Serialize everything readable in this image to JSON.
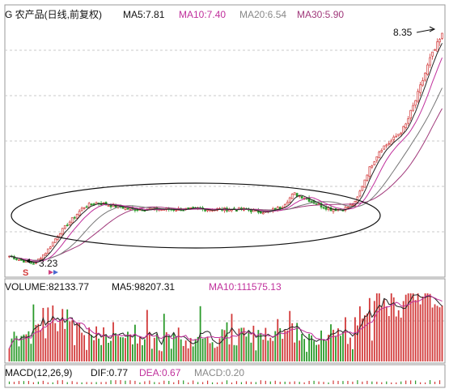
{
  "price_panel": {
    "title": "G 农产品(日线,前复权)",
    "ma5": "MA5:7.81",
    "ma10": "MA10:7.40",
    "ma20": "MA20:6.54",
    "ma30": "MA30:5.90",
    "high_label": "8.35",
    "low_label": "3.23",
    "marker_s": "S"
  },
  "volume_panel": {
    "volume": "VOLUME:82133.77",
    "ma5": "MA5:98207.31",
    "ma10": "MA10:111575.13"
  },
  "macd_panel": {
    "macd": "MACD(12,26,9)",
    "dif": "DIF:0.77",
    "dea": "DEA:0.67",
    "macd_value": "MACD:0.20"
  },
  "colors": {
    "candle_up": "#d23a3a",
    "candle_down": "#2a9a2a",
    "ma5": "#222222",
    "ma10": "#c0309c",
    "ma20": "#777777",
    "ma30": "#a0387a",
    "ellipse": "#111111",
    "grid": "#bdbdbd"
  },
  "chart_data": {
    "type": "candlestick",
    "ylim_price": [
      3.0,
      8.6
    ],
    "price_annotations": {
      "high": 8.35,
      "low": 3.23
    },
    "price_series_approx": [
      3.4,
      3.3,
      3.23,
      3.5,
      3.9,
      4.2,
      4.5,
      4.6,
      4.55,
      4.5,
      4.45,
      4.45,
      4.45,
      4.45,
      4.45,
      4.45,
      4.45,
      4.45,
      4.45,
      4.45,
      4.4,
      4.4,
      4.5,
      4.8,
      4.7,
      4.55,
      4.45,
      4.45,
      4.6,
      5.3,
      5.8,
      6.0,
      6.3,
      7.0,
      7.8,
      8.35
    ],
    "volume_last": 82133.77,
    "volume_ma5": 98207.31,
    "volume_ma10": 111575.13,
    "macd": {
      "dif": 0.77,
      "dea": 0.67,
      "macd": 0.2,
      "params": [
        12,
        26,
        9
      ]
    }
  }
}
